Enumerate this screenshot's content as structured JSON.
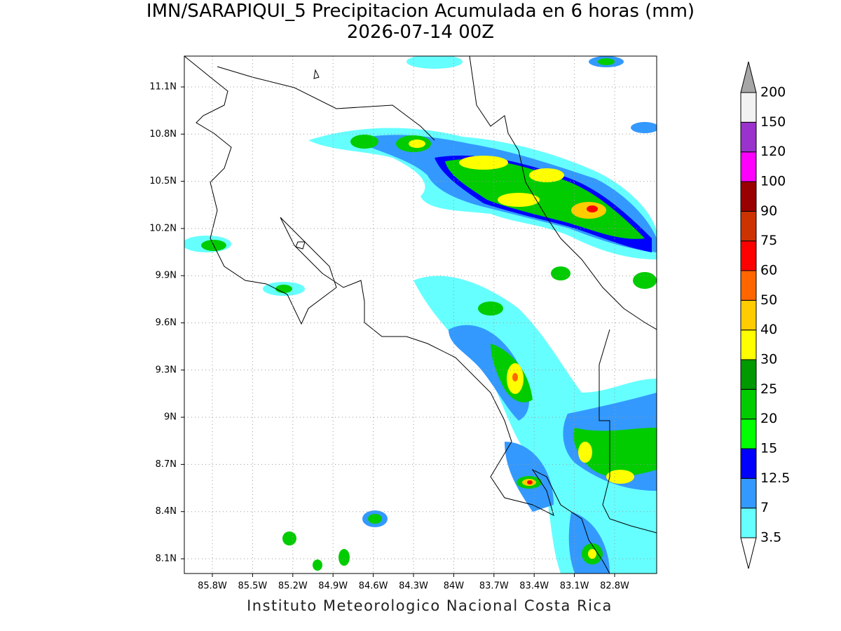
{
  "title": "IMN/SARAPIQUI_5 Precipitacion Acumulada en 6 horas (mm)",
  "subtitle": "2026-07-14 00Z",
  "map": {
    "lat_labels": [
      "11.1N",
      "10.8N",
      "10.5N",
      "10.2N",
      "9.9N",
      "9.6N",
      "9.3N",
      "9N",
      "8.7N",
      "8.4N",
      "8.1N"
    ],
    "lon_labels": [
      "85.8W",
      "85.5W",
      "85.2W",
      "84.9W",
      "84.6W",
      "84.3W",
      "84W",
      "83.7W",
      "83.4W",
      "83.1W",
      "82.8W"
    ]
  },
  "colorbar": {
    "levels": [
      3.5,
      7,
      12.5,
      15,
      20,
      25,
      30,
      40,
      50,
      60,
      75,
      90,
      100,
      120,
      150,
      200
    ],
    "colors": [
      "#66ffff",
      "#3399ff",
      "#0000ff",
      "#00ff00",
      "#00cc00",
      "#009900",
      "#ffff00",
      "#ffcc00",
      "#ff6600",
      "#ff0000",
      "#cc3300",
      "#990000",
      "#ff00ff",
      "#9933cc",
      "#f2f2f2"
    ],
    "over_color": "#a6a6a6",
    "under_color": "#ffffff"
  },
  "footer": "Instituto Meteorologico Nacional Costa Rica"
}
